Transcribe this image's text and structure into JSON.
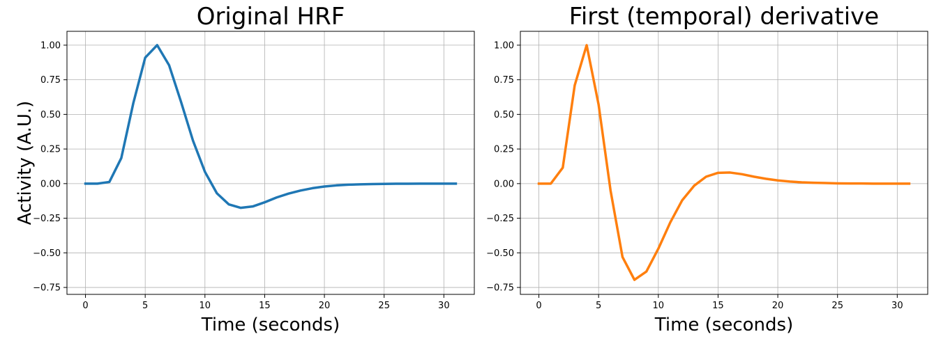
{
  "chart_data": [
    {
      "type": "line",
      "title": "Original HRF",
      "xlabel": "Time (seconds)",
      "ylabel": "Activity (A.U.)",
      "xlim": [
        -1.55,
        32.55
      ],
      "ylim": [
        -0.8,
        1.1
      ],
      "xticks": [
        0,
        5,
        10,
        15,
        20,
        25,
        30
      ],
      "xtick_labels": [
        "0",
        "5",
        "10",
        "15",
        "20",
        "25",
        "30"
      ],
      "yticks": [
        -0.75,
        -0.5,
        -0.25,
        0.0,
        0.25,
        0.5,
        0.75,
        1.0
      ],
      "ytick_labels": [
        "−0.75",
        "−0.50",
        "−0.25",
        "0.00",
        "0.25",
        "0.50",
        "0.75",
        "1.00"
      ],
      "grid": true,
      "series": [
        {
          "color": "#1f77b4",
          "x": [
            0,
            1,
            2,
            3,
            4,
            5,
            6,
            7,
            8,
            9,
            10,
            11,
            12,
            13,
            14,
            15,
            16,
            17,
            18,
            19,
            20,
            21,
            22,
            23,
            24,
            25,
            26,
            27,
            28,
            29,
            30,
            31
          ],
          "y": [
            0.0,
            0.0,
            0.012,
            0.185,
            0.58,
            0.91,
            1.0,
            0.855,
            0.59,
            0.31,
            0.085,
            -0.07,
            -0.15,
            -0.175,
            -0.165,
            -0.135,
            -0.1,
            -0.072,
            -0.05,
            -0.033,
            -0.021,
            -0.013,
            -0.008,
            -0.005,
            -0.003,
            -0.002,
            -0.001,
            -0.001,
            0.0,
            0.0,
            0.0,
            0.0
          ]
        }
      ]
    },
    {
      "type": "line",
      "title": "First (temporal) derivative",
      "xlabel": "Time (seconds)",
      "ylabel": "",
      "xlim": [
        -1.55,
        32.55
      ],
      "ylim": [
        -0.8,
        1.1
      ],
      "xticks": [
        0,
        5,
        10,
        15,
        20,
        25,
        30
      ],
      "xtick_labels": [
        "0",
        "5",
        "10",
        "15",
        "20",
        "25",
        "30"
      ],
      "yticks": [
        -0.75,
        -0.5,
        -0.25,
        0.0,
        0.25,
        0.5,
        0.75,
        1.0
      ],
      "ytick_labels": [
        "−0.75",
        "−0.50",
        "−0.25",
        "0.00",
        "0.25",
        "0.50",
        "0.75",
        "1.00"
      ],
      "grid": true,
      "series": [
        {
          "color": "#ff7f0e",
          "x": [
            0,
            1,
            2,
            3,
            4,
            5,
            6,
            7,
            8,
            9,
            10,
            11,
            12,
            13,
            14,
            15,
            16,
            17,
            18,
            19,
            20,
            21,
            22,
            23,
            24,
            25,
            26,
            27,
            28,
            29,
            30,
            31
          ],
          "y": [
            0.0,
            0.0,
            0.115,
            0.71,
            1.0,
            0.57,
            -0.05,
            -0.53,
            -0.695,
            -0.635,
            -0.47,
            -0.28,
            -0.12,
            -0.015,
            0.05,
            0.078,
            0.08,
            0.068,
            0.05,
            0.035,
            0.023,
            0.015,
            0.009,
            0.006,
            0.004,
            0.002,
            0.001,
            0.001,
            0.0,
            0.0,
            0.0,
            0.0
          ]
        }
      ]
    }
  ]
}
